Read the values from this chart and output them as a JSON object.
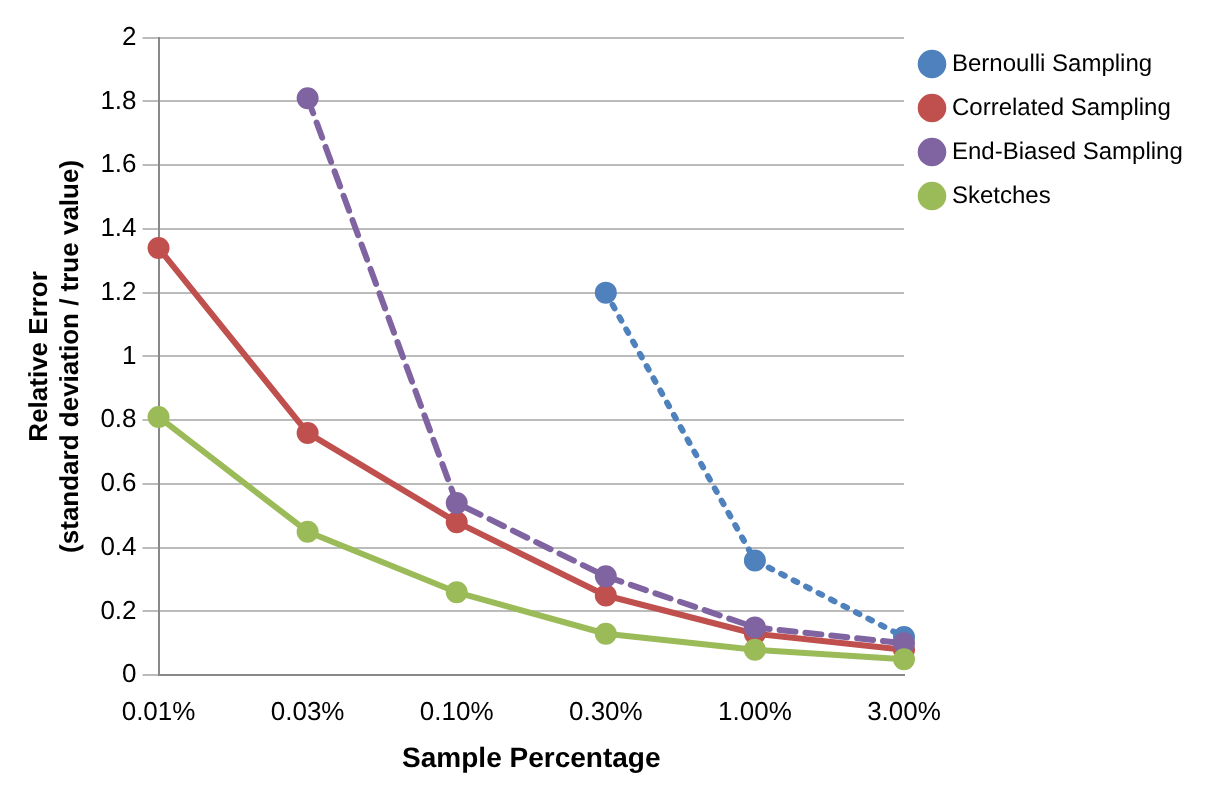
{
  "chart_data": {
    "type": "line",
    "xlabel": "Sample Percentage",
    "ylabel": "Relative Error\n(standard deviation / true value)",
    "categories": [
      "0.01%",
      "0.03%",
      "0.10%",
      "0.30%",
      "1.00%",
      "3.00%"
    ],
    "series": [
      {
        "name": "Bernoulli Sampling",
        "color": "#4f81bd",
        "line_style": "dotted",
        "values": [
          null,
          null,
          null,
          1.2,
          0.36,
          0.12
        ]
      },
      {
        "name": "Correlated Sampling",
        "color": "#c0504d",
        "line_style": "solid",
        "values": [
          1.34,
          0.76,
          0.48,
          0.25,
          0.13,
          0.08
        ]
      },
      {
        "name": "End-Biased Sampling",
        "color": "#8064a2",
        "line_style": "dashed",
        "values": [
          null,
          1.81,
          0.54,
          0.31,
          0.15,
          0.1
        ]
      },
      {
        "name": "Sketches",
        "color": "#9bbb59",
        "line_style": "solid",
        "values": [
          0.81,
          0.45,
          0.26,
          0.13,
          0.08,
          0.05
        ]
      }
    ],
    "ylim": [
      0,
      2
    ],
    "yticks": [
      0,
      0.2,
      0.4,
      0.6,
      0.8,
      1,
      1.2,
      1.4,
      1.6,
      1.8,
      2
    ],
    "grid": "y",
    "legend": "top right",
    "marker": "circle"
  }
}
